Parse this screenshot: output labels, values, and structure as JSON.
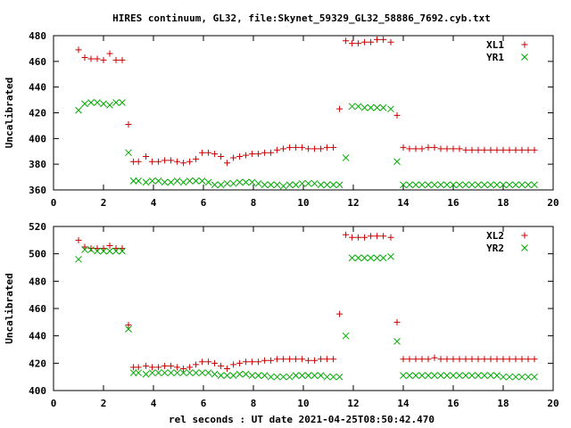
{
  "chart_data": {
    "type": "scatter",
    "title": "HIRES continuum, GL32, file:Skynet_59329_GL32_58886_7692.cyb.txt",
    "xlabel": "rel seconds : UT date 2021-04-25T08:50:42.470",
    "panels": [
      {
        "ylabel": "Uncalibrated",
        "xlim": [
          0,
          20
        ],
        "ylim": [
          360,
          480
        ],
        "xticks": [
          0,
          2,
          4,
          6,
          8,
          10,
          12,
          14,
          16,
          18,
          20
        ],
        "yticks": [
          360,
          380,
          400,
          420,
          440,
          460,
          480
        ],
        "legend_position": "top-right",
        "series": [
          {
            "name": "XL1",
            "marker": "plus",
            "color": "#cc0000",
            "x": [
              1.0,
              1.25,
              1.5,
              1.75,
              2.0,
              2.25,
              2.5,
              2.75,
              3.0,
              3.2,
              3.4,
              3.7,
              3.95,
              4.2,
              4.45,
              4.7,
              4.95,
              5.2,
              5.45,
              5.7,
              5.95,
              6.2,
              6.45,
              6.7,
              6.95,
              7.2,
              7.45,
              7.7,
              7.95,
              8.2,
              8.45,
              8.7,
              8.95,
              9.2,
              9.45,
              9.7,
              9.95,
              10.2,
              10.45,
              10.7,
              10.95,
              11.2,
              11.45,
              11.7,
              11.95,
              12.2,
              12.45,
              12.7,
              12.95,
              13.2,
              13.5,
              13.75,
              14.0,
              14.25,
              14.5,
              14.75,
              15.0,
              15.25,
              15.5,
              15.75,
              16.0,
              16.25,
              16.5,
              16.75,
              17.0,
              17.25,
              17.5,
              17.75,
              18.0,
              18.25,
              18.5,
              18.75,
              19.0,
              19.25
            ],
            "y": [
              469,
              463,
              462,
              462,
              461,
              466,
              461,
              461,
              411,
              382,
              382,
              386,
              382,
              382,
              383,
              383,
              382,
              381,
              382,
              384,
              389,
              389,
              388,
              386,
              381,
              385,
              386,
              387,
              388,
              388,
              389,
              389,
              391,
              392,
              393,
              393,
              393,
              392,
              392,
              392,
              393,
              393,
              423,
              476,
              474,
              474,
              475,
              475,
              477,
              477,
              475,
              418,
              393,
              392,
              392,
              392,
              393,
              393,
              392,
              392,
              392,
              392,
              391,
              391,
              391,
              391,
              391,
              391,
              391,
              391,
              391,
              391,
              391,
              391
            ]
          },
          {
            "name": "YR1",
            "marker": "cross",
            "color": "#00aa00",
            "x": [
              1.0,
              1.25,
              1.5,
              1.75,
              2.0,
              2.25,
              2.5,
              2.75,
              3.0,
              3.2,
              3.4,
              3.7,
              3.95,
              4.2,
              4.45,
              4.7,
              4.95,
              5.2,
              5.45,
              5.7,
              5.95,
              6.2,
              6.45,
              6.7,
              6.95,
              7.2,
              7.45,
              7.7,
              7.95,
              8.2,
              8.45,
              8.7,
              8.95,
              9.2,
              9.45,
              9.7,
              9.95,
              10.2,
              10.45,
              10.7,
              10.95,
              11.2,
              11.45,
              11.7,
              11.95,
              12.2,
              12.45,
              12.7,
              12.95,
              13.2,
              13.5,
              13.75,
              14.0,
              14.25,
              14.5,
              14.75,
              15.0,
              15.25,
              15.5,
              15.75,
              16.0,
              16.25,
              16.5,
              16.75,
              17.0,
              17.25,
              17.5,
              17.75,
              18.0,
              18.25,
              18.5,
              18.75,
              19.0,
              19.25
            ],
            "y": [
              422,
              427,
              428,
              428,
              427,
              426,
              428,
              428,
              389,
              367,
              367,
              366,
              367,
              367,
              366,
              366,
              367,
              366,
              367,
              367,
              367,
              366,
              364,
              364,
              365,
              365,
              366,
              366,
              366,
              365,
              364,
              364,
              364,
              363,
              364,
              364,
              365,
              365,
              365,
              364,
              364,
              364,
              364,
              385,
              425,
              425,
              424,
              424,
              424,
              424,
              423,
              382,
              364,
              364,
              364,
              364,
              364,
              364,
              364,
              364,
              364,
              364,
              364,
              364,
              364,
              364,
              364,
              364,
              364,
              364,
              364,
              364,
              364,
              364
            ]
          }
        ]
      },
      {
        "ylabel": "Uncalibrated",
        "xlim": [
          0,
          20
        ],
        "ylim": [
          400,
          520
        ],
        "xticks": [
          0,
          2,
          4,
          6,
          8,
          10,
          12,
          14,
          16,
          18,
          20
        ],
        "yticks": [
          400,
          420,
          440,
          460,
          480,
          500,
          520
        ],
        "legend_position": "top-right",
        "series": [
          {
            "name": "XL2",
            "marker": "plus",
            "color": "#cc0000",
            "x": [
              1.0,
              1.25,
              1.5,
              1.75,
              2.0,
              2.25,
              2.5,
              2.75,
              3.0,
              3.2,
              3.4,
              3.7,
              3.95,
              4.2,
              4.45,
              4.7,
              4.95,
              5.2,
              5.45,
              5.7,
              5.95,
              6.2,
              6.45,
              6.7,
              6.95,
              7.2,
              7.45,
              7.7,
              7.95,
              8.2,
              8.45,
              8.7,
              8.95,
              9.2,
              9.45,
              9.7,
              9.95,
              10.2,
              10.45,
              10.7,
              10.95,
              11.2,
              11.45,
              11.7,
              11.95,
              12.2,
              12.45,
              12.7,
              12.95,
              13.2,
              13.5,
              13.75,
              14.0,
              14.25,
              14.5,
              14.75,
              15.0,
              15.25,
              15.5,
              15.75,
              16.0,
              16.25,
              16.5,
              16.75,
              17.0,
              17.25,
              17.5,
              17.75,
              18.0,
              18.25,
              18.5,
              18.75,
              19.0,
              19.25
            ],
            "y": [
              510,
              505,
              504,
              504,
              504,
              506,
              504,
              504,
              448,
              417,
              417,
              418,
              417,
              417,
              418,
              418,
              417,
              416,
              417,
              419,
              421,
              421,
              420,
              418,
              416,
              419,
              420,
              421,
              421,
              421,
              422,
              422,
              423,
              423,
              423,
              423,
              423,
              422,
              422,
              423,
              423,
              423,
              456,
              514,
              512,
              512,
              512,
              513,
              513,
              513,
              512,
              450,
              423,
              423,
              423,
              423,
              423,
              424,
              423,
              423,
              423,
              423,
              423,
              423,
              423,
              423,
              423,
              423,
              423,
              423,
              423,
              423,
              423,
              423
            ]
          },
          {
            "name": "YR2",
            "marker": "cross",
            "color": "#00aa00",
            "x": [
              1.0,
              1.25,
              1.5,
              1.75,
              2.0,
              2.25,
              2.5,
              2.75,
              3.0,
              3.2,
              3.4,
              3.7,
              3.95,
              4.2,
              4.45,
              4.7,
              4.95,
              5.2,
              5.45,
              5.7,
              5.95,
              6.2,
              6.45,
              6.7,
              6.95,
              7.2,
              7.45,
              7.7,
              7.95,
              8.2,
              8.45,
              8.7,
              8.95,
              9.2,
              9.45,
              9.7,
              9.95,
              10.2,
              10.45,
              10.7,
              10.95,
              11.2,
              11.45,
              11.7,
              11.95,
              12.2,
              12.45,
              12.7,
              12.95,
              13.2,
              13.5,
              13.75,
              14.0,
              14.25,
              14.5,
              14.75,
              15.0,
              15.25,
              15.5,
              15.75,
              16.0,
              16.25,
              16.5,
              16.75,
              17.0,
              17.25,
              17.5,
              17.75,
              18.0,
              18.25,
              18.5,
              18.75,
              19.0,
              19.25
            ],
            "y": [
              496,
              503,
              503,
              502,
              502,
              502,
              502,
              502,
              445,
              413,
              413,
              412,
              413,
              413,
              413,
              413,
              413,
              413,
              413,
              413,
              413,
              413,
              412,
              411,
              411,
              411,
              412,
              412,
              411,
              411,
              411,
              410,
              410,
              410,
              410,
              411,
              411,
              411,
              411,
              411,
              410,
              410,
              410,
              440,
              497,
              497,
              497,
              497,
              497,
              497,
              498,
              436,
              411,
              411,
              411,
              411,
              411,
              411,
              411,
              411,
              411,
              411,
              411,
              411,
              411,
              411,
              411,
              411,
              410,
              410,
              410,
              410,
              410,
              410
            ]
          }
        ]
      }
    ]
  }
}
